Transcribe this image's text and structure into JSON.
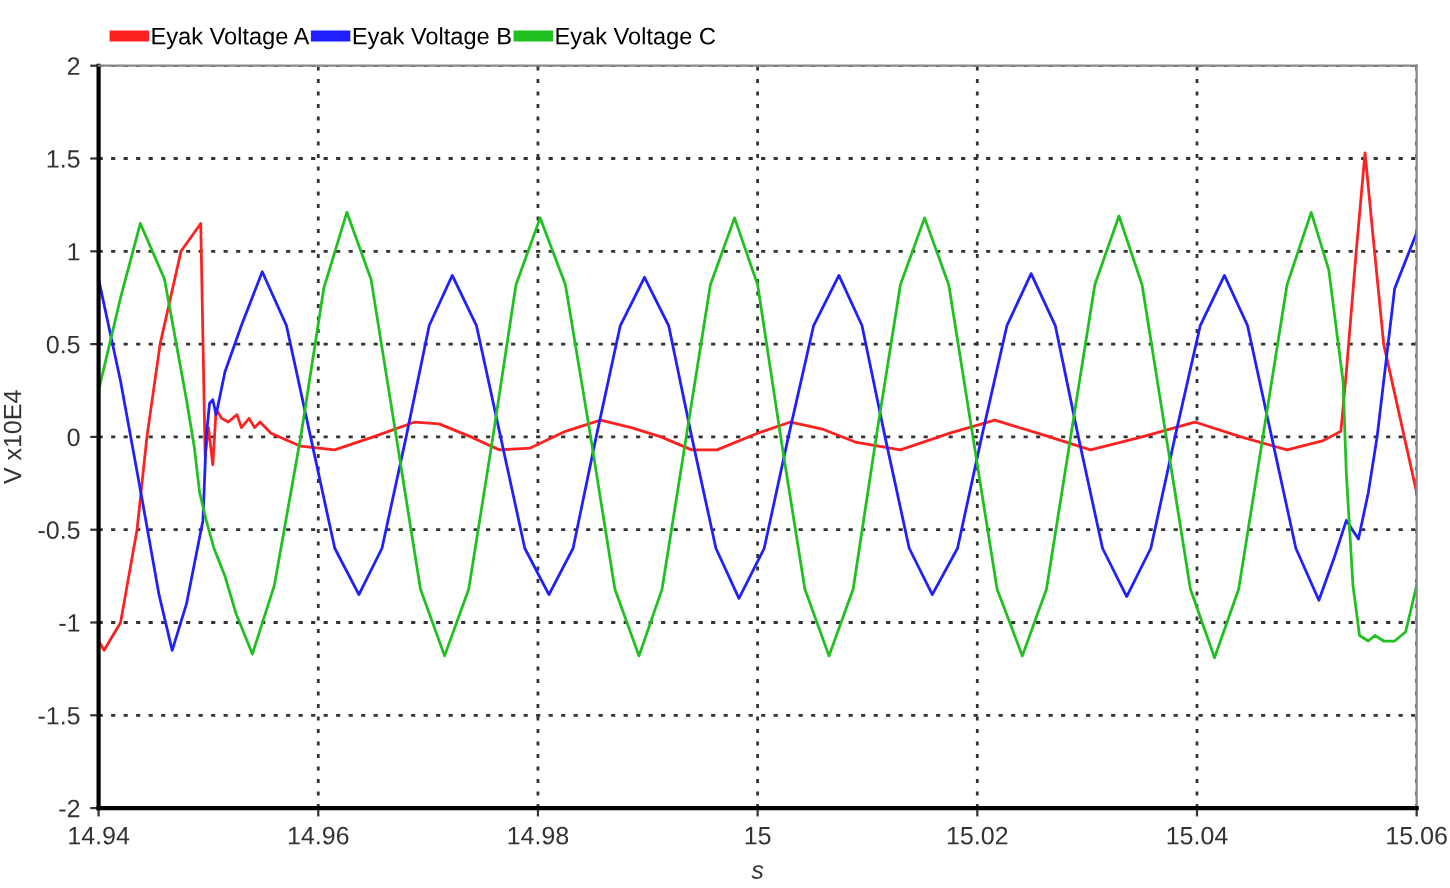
{
  "chart_data": {
    "type": "line",
    "xlabel": "s",
    "ylabel": "V x10E4",
    "xlim": [
      14.94,
      15.06
    ],
    "ylim": [
      -2,
      2
    ],
    "xticks": [
      14.94,
      14.96,
      14.98,
      15,
      15.02,
      15.04,
      15.06
    ],
    "yticks": [
      -2,
      -1.5,
      -1,
      -0.5,
      0,
      0.5,
      1,
      1.5,
      2
    ],
    "grid": true,
    "legend": "top",
    "marker": "none",
    "line_style": "solid",
    "series": [
      {
        "name": "Eyak Voltage A",
        "color": "#ff2020",
        "x": [
          14.94,
          14.9405,
          14.942,
          14.9435,
          14.9444,
          14.9456,
          14.9475,
          14.9493,
          14.9497,
          14.95,
          14.9504,
          14.9507,
          14.9512,
          14.9518,
          14.9526,
          14.953,
          14.9537,
          14.9542,
          14.9547,
          14.9557,
          14.9584,
          14.9615,
          14.965,
          14.9688,
          14.971,
          14.9739,
          14.9765,
          14.9793,
          14.9825,
          14.9857,
          14.9885,
          14.9912,
          14.994,
          14.9963,
          15.0,
          15.003,
          15.006,
          15.009,
          15.013,
          15.0175,
          15.0216,
          15.0255,
          15.0303,
          15.035,
          15.0398,
          15.044,
          15.0482,
          15.0515,
          15.0531,
          15.0536,
          15.0545,
          15.0553,
          15.056,
          15.057,
          15.0585,
          15.06
        ],
        "values": [
          -1.1,
          -1.15,
          -1.0,
          -0.5,
          0,
          0.5,
          1.0,
          1.15,
          -0.1,
          0.05,
          -0.15,
          0.15,
          0.1,
          0.08,
          0.12,
          0.05,
          0.1,
          0.05,
          0.08,
          0.02,
          -0.05,
          -0.07,
          0.0,
          0.08,
          0.07,
          0.0,
          -0.07,
          -0.06,
          0.03,
          0.09,
          0.05,
          0.0,
          -0.07,
          -0.07,
          0.02,
          0.08,
          0.04,
          -0.03,
          -0.07,
          0.02,
          0.09,
          0.02,
          -0.07,
          0.0,
          0.08,
          0.0,
          -0.07,
          -0.02,
          0.03,
          0.35,
          1.0,
          1.53,
          1.1,
          0.5,
          0.1,
          -0.3
        ]
      },
      {
        "name": "Eyak Voltage B",
        "color": "#2020ff",
        "x": [
          14.94,
          14.942,
          14.944,
          14.9455,
          14.9467,
          14.948,
          14.949,
          14.9495,
          14.9498,
          14.9501,
          14.9504,
          14.9507,
          14.9515,
          14.953,
          14.9549,
          14.9571,
          14.9593,
          14.9615,
          14.9637,
          14.9658,
          14.968,
          14.9701,
          14.9722,
          14.9744,
          14.9766,
          14.9788,
          14.981,
          14.9832,
          14.9853,
          14.9875,
          14.9897,
          14.9919,
          14.994,
          14.9962,
          14.9983,
          15.0006,
          15.0028,
          15.0051,
          15.0074,
          15.0095,
          15.0116,
          15.0138,
          15.0159,
          15.0182,
          15.0204,
          15.0227,
          15.0249,
          15.0271,
          15.0292,
          15.0314,
          15.0336,
          15.0358,
          15.038,
          15.0403,
          15.0425,
          15.0446,
          15.0468,
          15.049,
          15.0511,
          15.0525,
          15.0536,
          15.0547,
          15.0556,
          15.0564,
          15.058,
          15.06
        ],
        "values": [
          0.85,
          0.3,
          -0.35,
          -0.85,
          -1.15,
          -0.9,
          -0.6,
          -0.45,
          0.0,
          0.18,
          0.2,
          0.12,
          0.35,
          0.6,
          0.89,
          0.6,
          0.0,
          -0.6,
          -0.85,
          -0.6,
          0,
          0.6,
          0.87,
          0.6,
          0,
          -0.6,
          -0.85,
          -0.6,
          0,
          0.6,
          0.86,
          0.6,
          0,
          -0.6,
          -0.87,
          -0.6,
          0,
          0.6,
          0.87,
          0.6,
          0,
          -0.6,
          -0.85,
          -0.6,
          0,
          0.6,
          0.88,
          0.6,
          0,
          -0.6,
          -0.86,
          -0.6,
          0,
          0.6,
          0.87,
          0.6,
          0,
          -0.6,
          -0.88,
          -0.65,
          -0.45,
          -0.55,
          -0.3,
          0.0,
          0.8,
          1.1
        ]
      },
      {
        "name": "Eyak Voltage C",
        "color": "#20c020",
        "x": [
          14.94,
          14.942,
          14.9438,
          14.946,
          14.948,
          14.9487,
          14.9492,
          14.9498,
          14.9505,
          14.9515,
          14.9525,
          14.954,
          14.956,
          14.9584,
          14.9605,
          14.9626,
          14.9648,
          14.9671,
          14.9693,
          14.9715,
          14.9737,
          14.9759,
          14.978,
          14.9802,
          14.9825,
          14.9848,
          14.987,
          14.9892,
          14.9913,
          14.9935,
          14.9957,
          14.9979,
          15.0,
          15.0021,
          15.0043,
          15.0065,
          15.0087,
          15.0108,
          15.013,
          15.0152,
          15.0174,
          15.0196,
          15.0218,
          15.0241,
          15.0263,
          15.0285,
          15.0307,
          15.0329,
          15.035,
          15.0372,
          15.0394,
          15.0416,
          15.0438,
          15.046,
          15.0482,
          15.0504,
          15.052,
          15.0533,
          15.0536,
          15.0542,
          15.0548,
          15.0556,
          15.0562,
          15.057,
          15.058,
          15.059,
          15.06
        ],
        "values": [
          0.25,
          0.75,
          1.15,
          0.85,
          0.2,
          -0.05,
          -0.3,
          -0.45,
          -0.6,
          -0.75,
          -0.95,
          -1.17,
          -0.8,
          0.0,
          0.8,
          1.21,
          0.85,
          0,
          -0.82,
          -1.18,
          -0.82,
          0,
          0.82,
          1.18,
          0.82,
          0,
          -0.82,
          -1.18,
          -0.82,
          0,
          0.82,
          1.18,
          0.82,
          0,
          -0.82,
          -1.18,
          -0.82,
          0,
          0.82,
          1.18,
          0.82,
          0,
          -0.82,
          -1.18,
          -0.82,
          0,
          0.82,
          1.19,
          0.82,
          0,
          -0.82,
          -1.19,
          -0.82,
          0,
          0.82,
          1.21,
          0.9,
          0.3,
          -0.2,
          -0.8,
          -1.07,
          -1.1,
          -1.07,
          -1.1,
          -1.1,
          -1.05,
          -0.8
        ]
      }
    ]
  }
}
